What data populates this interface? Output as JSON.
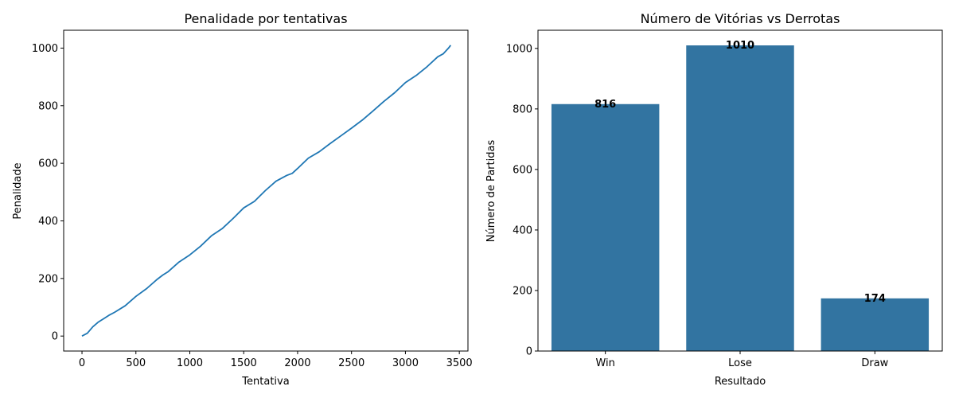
{
  "chart_data": [
    {
      "type": "line",
      "title": "Penalidade por tentativas",
      "xlabel": "Tentativa",
      "ylabel": "Penalidade",
      "xlim": [
        -170,
        3580
      ],
      "ylim": [
        -52,
        1062
      ],
      "xticks": [
        0,
        500,
        1000,
        1500,
        2000,
        2500,
        3000,
        3500
      ],
      "yticks": [
        0,
        200,
        400,
        600,
        800,
        1000
      ],
      "color": "#1f77b4",
      "x": [
        0,
        50,
        100,
        150,
        200,
        250,
        300,
        400,
        500,
        600,
        700,
        750,
        800,
        900,
        1000,
        1100,
        1200,
        1300,
        1400,
        1500,
        1600,
        1700,
        1800,
        1900,
        1950,
        2000,
        2100,
        2200,
        2300,
        2400,
        2500,
        2600,
        2700,
        2800,
        2900,
        3000,
        3100,
        3200,
        3300,
        3350,
        3400,
        3420
      ],
      "y": [
        0,
        10,
        32,
        48,
        60,
        72,
        82,
        105,
        138,
        165,
        198,
        212,
        224,
        257,
        282,
        312,
        348,
        373,
        408,
        445,
        468,
        505,
        538,
        558,
        565,
        582,
        618,
        640,
        668,
        695,
        722,
        750,
        782,
        815,
        845,
        880,
        905,
        935,
        970,
        980,
        1000,
        1010
      ],
      "grid": false
    },
    {
      "type": "bar",
      "title": "Número de Vitórias vs Derrotas",
      "xlabel": "Resultado",
      "ylabel": "Número de Partidas",
      "categories": [
        "Win",
        "Lose",
        "Draw"
      ],
      "values": [
        816,
        1010,
        174
      ],
      "data_labels": [
        "816",
        "1010",
        "174"
      ],
      "ylim": [
        0,
        1060
      ],
      "yticks": [
        0,
        200,
        400,
        600,
        800,
        1000
      ],
      "color": "#3274a1",
      "grid": false
    }
  ]
}
